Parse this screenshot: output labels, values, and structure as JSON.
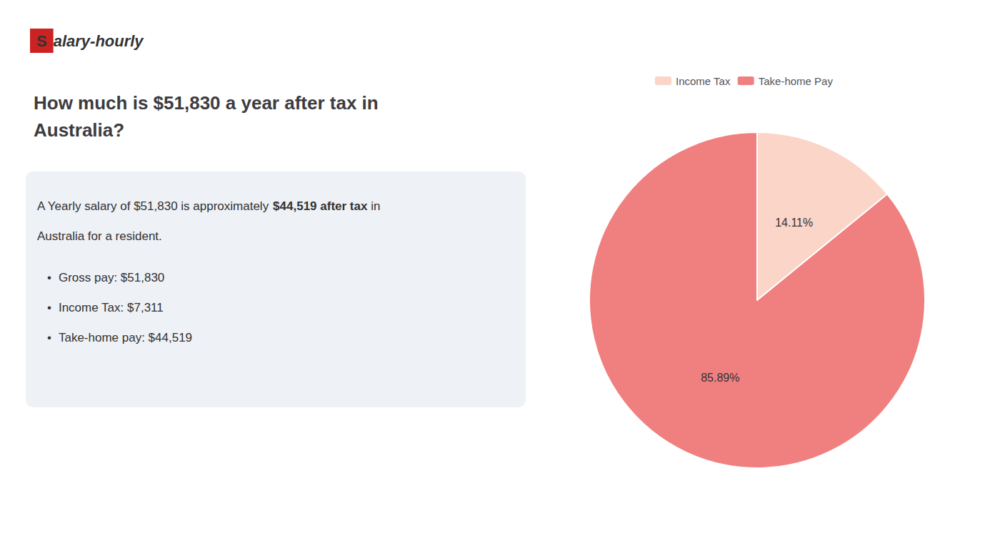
{
  "chart_data": {
    "type": "pie",
    "title": "How much is $51,830 a year after tax in\nAustralia?",
    "annotations": [
      [
        {
          "text": "S",
          "color": "#ffffff",
          "background": "#cc2222"
        },
        {
          "text": "alary-hourly"
        }
      ],
      [
        {
          "text": "A Yearly salary of $51,830 is approximately "
        },
        {
          "text": "$44,519 after tax",
          "color": "#cc2222"
        },
        {
          "text": " in"
        }
      ],
      [
        {
          "text": "Australia for a resident."
        }
      ],
      [
        {
          "text": "•"
        },
        {
          "text": "Gross pay: $51,830"
        }
      ],
      [
        {
          "text": "•"
        },
        {
          "text": "Income Tax: $7,311"
        }
      ],
      [
        {
          "text": "•"
        },
        {
          "text": "Take-home pay: $44,519"
        }
      ]
    ],
    "categories": [
      "Income Tax",
      "Take-home Pay"
    ],
    "values": [
      14.11,
      85.89
    ],
    "value_labels": [
      "14.11%",
      "85.89%"
    ],
    "colors": [
      "#fad5c8",
      "#f08080"
    ],
    "data_labels": true,
    "legend": "top"
  }
}
